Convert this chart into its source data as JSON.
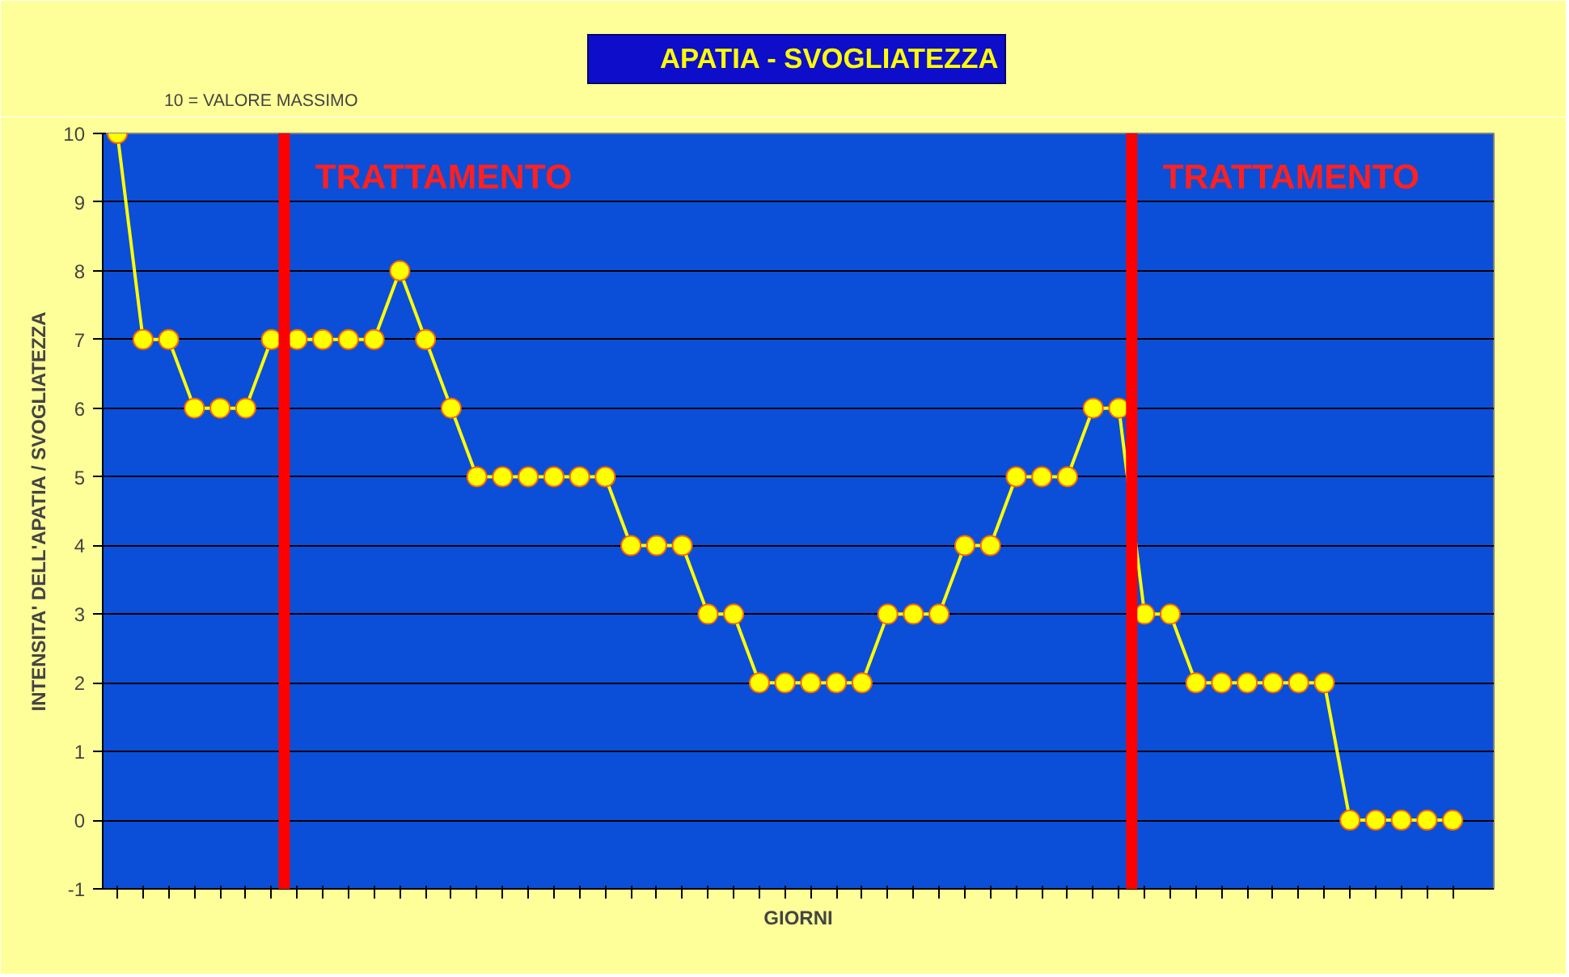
{
  "chart_data": {
    "type": "line",
    "xlabel": "GIORNI",
    "ylabel": "INTENSITA' DELL'APATIA / SVOGLIATEZZA",
    "annotations": [
      "10 = VALORE MASSIMO",
      "TRATTAMENTO",
      "TRATTAMENTO"
    ],
    "categories": [
      null,
      null,
      null,
      null,
      null,
      null,
      null,
      null,
      null,
      null,
      null,
      null,
      null,
      null,
      null,
      null,
      null,
      null,
      null,
      null,
      null,
      null,
      null,
      null,
      null,
      null,
      null,
      null,
      null,
      null,
      null,
      null,
      null,
      null,
      null,
      null,
      null,
      null,
      null,
      null,
      null,
      null,
      null,
      null,
      null,
      null,
      null,
      null,
      null,
      null,
      null,
      null,
      null
    ],
    "series": [
      {
        "name": "APATIA - SVOGLIATEZZA",
        "color": "#ffff00",
        "values": [
          10,
          7,
          7,
          6,
          6,
          6,
          7,
          7,
          7,
          7,
          7,
          8,
          7,
          6,
          5,
          5,
          5,
          5,
          5,
          5,
          4,
          4,
          4,
          3,
          3,
          2,
          2,
          2,
          2,
          2,
          3,
          3,
          3,
          4,
          4,
          5,
          5,
          5,
          6,
          6,
          3,
          3,
          2,
          2,
          2,
          2,
          2,
          2,
          0,
          0,
          0,
          0,
          0
        ]
      }
    ],
    "ylim": [
      -1,
      10
    ],
    "yticks": [
      -1,
      0,
      1,
      2,
      3,
      4,
      5,
      6,
      7,
      8,
      9,
      10
    ],
    "grid": "y",
    "legend": "top",
    "marker": "circle",
    "line_style": "solid",
    "tick_labels": "y"
  }
}
